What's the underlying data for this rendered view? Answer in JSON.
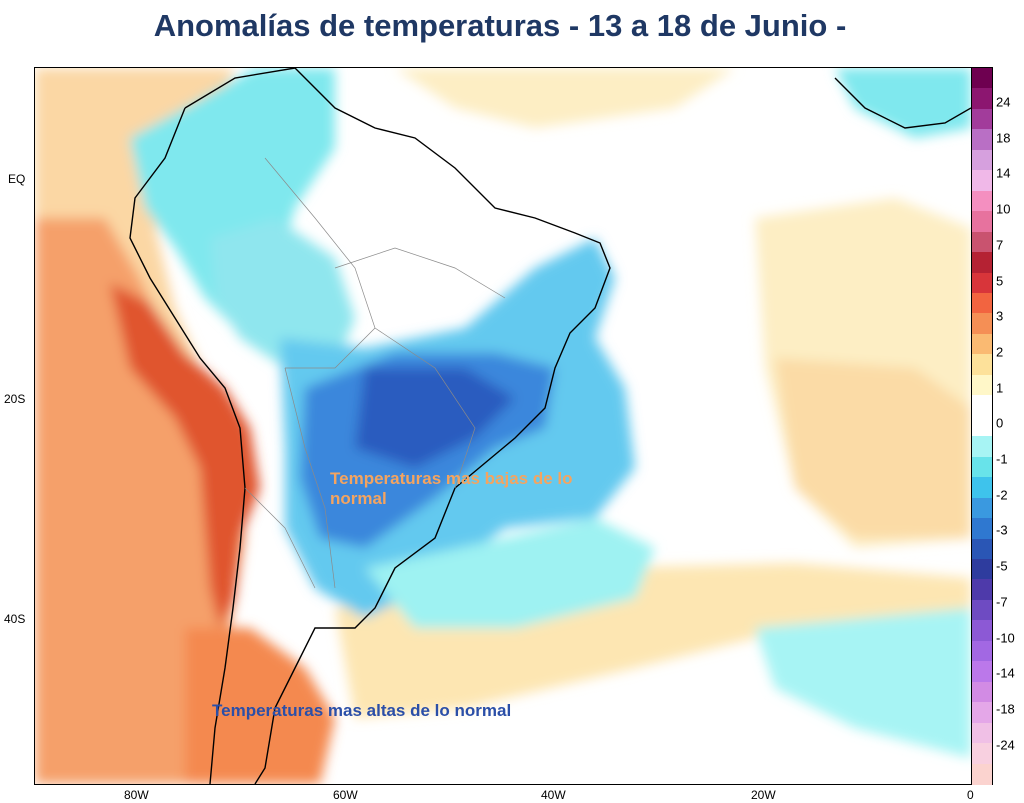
{
  "title": "Anomalías de temperaturas - 13 a 18 de Junio -",
  "map": {
    "latitude_labels": [
      "EQ",
      "20S",
      "40S"
    ],
    "longitude_labels": [
      "80W",
      "60W",
      "40W",
      "20W",
      "0"
    ],
    "annotations": {
      "cold_label": "Temperaturas mas bajas de lo normal",
      "warm_label": "Temperaturas mas altas de lo normal"
    },
    "colors": {
      "warm_label": "#f4a460",
      "cold_label": "#2b4fa8"
    }
  },
  "colorbar": {
    "labels": [
      "24",
      "18",
      "14",
      "10",
      "7",
      "5",
      "3",
      "2",
      "1",
      "0",
      "-1",
      "-2",
      "-3",
      "-5",
      "-7",
      "-10",
      "-14",
      "-18",
      "-24"
    ],
    "colors": [
      "#6e0050",
      "#8c1670",
      "#a23c9b",
      "#b96fc5",
      "#d6a0de",
      "#f0b8e8",
      "#f48fc0",
      "#e7729e",
      "#c9536f",
      "#b52233",
      "#d8353a",
      "#f26440",
      "#f58f55",
      "#faba72",
      "#fde19a",
      "#fff7c8",
      "#ffffff",
      "#ffffff",
      "#a7f4f4",
      "#68e3ea",
      "#3ec3ec",
      "#3a99e0",
      "#2f78d0",
      "#2a56b5",
      "#2e3c9e",
      "#4e3aaa",
      "#6e4bc2",
      "#8c59d5",
      "#a268e3",
      "#bb78ea",
      "#d28be4",
      "#e4a7e8",
      "#f0c0e6",
      "#f8d0e0",
      "#fbd3cf"
    ]
  }
}
